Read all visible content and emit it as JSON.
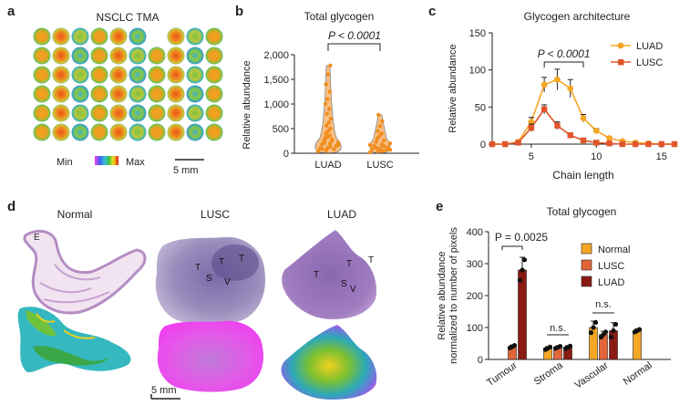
{
  "panels": {
    "a": {
      "label": "a",
      "title": "NSCLC TMA",
      "colorbar_min": "Min",
      "colorbar_max": "Max",
      "scalebar": "5 mm",
      "grid_rows": 6,
      "grid_cols": 10
    },
    "b": {
      "label": "b",
      "title": "Total glycogen",
      "pvalue": "P < 0.0001"
    },
    "c": {
      "label": "c",
      "title": "Glycogen architecture",
      "pvalue": "P < 0.0001"
    },
    "d": {
      "label": "d",
      "columns": [
        "Normal",
        "LUSC",
        "LUAD"
      ],
      "scalebar": "5 mm",
      "normal_annotations": [
        "E"
      ],
      "lusc_annotations": [
        "T",
        "S",
        "T",
        "V",
        "T"
      ],
      "luad_annotations": [
        "T",
        "T",
        "S",
        "V",
        "T"
      ]
    },
    "e": {
      "label": "e",
      "title": "Total glycogen",
      "pvalue": "P = 0.0025",
      "ns1": "n.s.",
      "ns2": "n.s."
    }
  },
  "colors": {
    "luad_c": "#f5a623",
    "lusc_c": "#e0552a",
    "normal_e": "#f5a623",
    "lusc_e": "#e2653a",
    "luad_e": "#8b1a12",
    "violin": "#f28c1e",
    "he_purple": "#a878b8"
  },
  "chart_data": [
    {
      "id": "b",
      "type": "violin",
      "title": "Total glycogen",
      "categories": [
        "LUAD",
        "LUSC"
      ],
      "ylabel": "Relative abundance",
      "ylim": [
        0,
        2000
      ],
      "yticks": [
        0,
        500,
        1000,
        1500,
        2000
      ],
      "ytick_labels": [
        "0",
        "500",
        "1,000",
        "1,500",
        "2,000"
      ],
      "max_values": [
        1780,
        780
      ],
      "points": {
        "LUAD": [
          40,
          60,
          80,
          100,
          120,
          150,
          180,
          200,
          220,
          250,
          280,
          300,
          330,
          360,
          400,
          450,
          500,
          560,
          620,
          700,
          800,
          900,
          1000,
          1100,
          1250,
          1400,
          1600,
          1780,
          90,
          130,
          170,
          210,
          260,
          310,
          350
        ],
        "LUSC": [
          20,
          40,
          60,
          80,
          100,
          120,
          150,
          180,
          200,
          230,
          260,
          300,
          350,
          400,
          450,
          550,
          650,
          780,
          50,
          70,
          110,
          140,
          170
        ]
      }
    },
    {
      "id": "c",
      "type": "line",
      "title": "Glycogen architecture",
      "xlabel": "Chain length",
      "ylabel": "Relative abundance",
      "xlim": [
        2,
        16
      ],
      "ylim": [
        0,
        150
      ],
      "xticks": [
        5,
        10,
        15
      ],
      "yticks": [
        0,
        50,
        100,
        150
      ],
      "x": [
        2,
        3,
        4,
        5,
        6,
        7,
        8,
        9,
        10,
        11,
        12,
        13,
        14,
        15,
        16
      ],
      "series": [
        {
          "name": "LUAD",
          "values": [
            0,
            0,
            3,
            30,
            80,
            87,
            75,
            35,
            18,
            8,
            4,
            2,
            1,
            0,
            0
          ],
          "errors": [
            0,
            0,
            2,
            6,
            10,
            14,
            12,
            5,
            3,
            2,
            1,
            1,
            0,
            0,
            0
          ]
        },
        {
          "name": "LUSC",
          "values": [
            0,
            0,
            2,
            22,
            47,
            25,
            12,
            5,
            2,
            1,
            0,
            0,
            0,
            0,
            0
          ],
          "errors": [
            0,
            0,
            1,
            5,
            6,
            5,
            3,
            1,
            1,
            0,
            0,
            0,
            0,
            0,
            0
          ]
        }
      ]
    },
    {
      "id": "e",
      "type": "bar",
      "title": "Total glycogen",
      "ylabel": "Relative abundance normalized to number of pixels",
      "ylabel_lines": [
        "Relative abundance",
        "normalized to number of pixels"
      ],
      "categories": [
        "Tumour",
        "Stroma",
        "Vascular",
        "Normal"
      ],
      "ylim": [
        0,
        400
      ],
      "yticks": [
        0,
        100,
        200,
        300,
        400
      ],
      "series": [
        {
          "name": "Normal",
          "values": [
            null,
            35,
            100,
            90
          ],
          "errors": [
            null,
            5,
            20,
            5
          ]
        },
        {
          "name": "LUSC",
          "values": [
            40,
            38,
            78,
            null
          ],
          "errors": [
            5,
            4,
            10,
            null
          ]
        },
        {
          "name": "LUAD",
          "values": [
            280,
            38,
            90,
            null
          ],
          "errors": [
            40,
            5,
            25,
            null
          ]
        }
      ]
    }
  ]
}
